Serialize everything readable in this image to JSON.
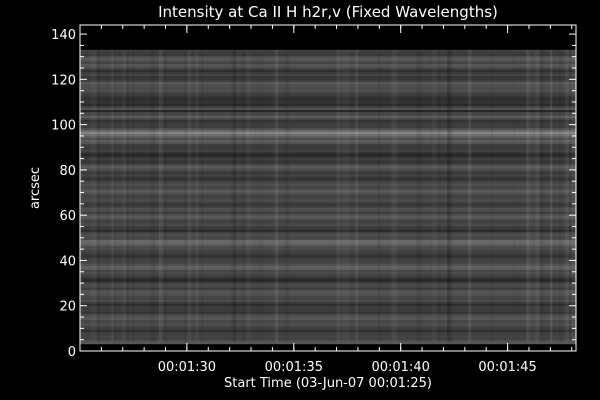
{
  "chart_data": {
    "type": "heatmap",
    "title": "Intensity at Ca II H h2r,v (Fixed Wavelengths)",
    "xlabel": "Start Time (03-Jun-07 00:01:25)",
    "ylabel": "arcsec",
    "x_tick_labels": [
      "00:01:30",
      "00:01:35",
      "00:01:40",
      "00:01:45"
    ],
    "x_tick_seconds": [
      5,
      10,
      15,
      20
    ],
    "xlim_seconds": [
      0,
      23.2
    ],
    "y_ticks": [
      0,
      20,
      40,
      60,
      80,
      100,
      120,
      140
    ],
    "y_tick_labels": [
      "0",
      "20",
      "40",
      "60",
      "80",
      "100",
      "120",
      "140"
    ],
    "ylim": [
      0,
      144
    ],
    "data_extent_y": [
      4,
      133
    ],
    "bright_band_arcsec": 97,
    "dark_line_arcsec": 106,
    "colormap": "grayscale",
    "colors": {
      "background": "#000000",
      "foreground": "#ffffff"
    }
  }
}
